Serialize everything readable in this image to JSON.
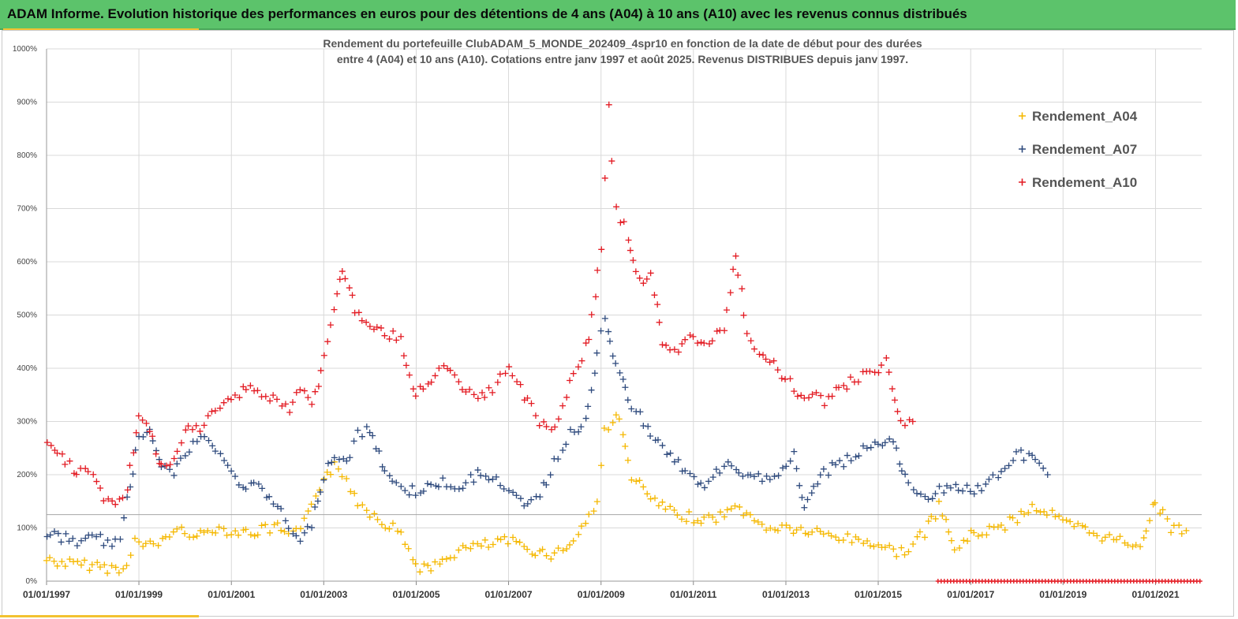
{
  "banner": {
    "text": "ADAM Informe. Evolution historique des performances en euros pour des détentions de 4 ans (A04) à 10 ans (A10) avec les revenus connus distribués"
  },
  "chart_data": {
    "type": "scatter",
    "title_lines": [
      "Rendement du portefeuille ClubADAM_5_MONDE_202409_4spr10  en fonction de la date de début pour des durées",
      "entre 4 (A04) et 10 ans (A10). Cotations entre janv 1997 et août 2025. Revenus DISTRIBUES depuis janv 1997."
    ],
    "x_axis": {
      "type": "date",
      "min": "1997-01-01",
      "max": "2022-01-01",
      "tick_labels": [
        "01/01/1997",
        "01/01/1999",
        "01/01/2001",
        "01/01/2003",
        "01/01/2005",
        "01/01/2007",
        "01/01/2009",
        "01/01/2011",
        "01/01/2013",
        "01/01/2015",
        "01/01/2017",
        "01/01/2019",
        "01/01/2021"
      ]
    },
    "y_axis": {
      "min": 0,
      "max": 1000,
      "unit": "%",
      "tick_labels": [
        "0%",
        "100%",
        "200%",
        "300%",
        "400%",
        "500%",
        "600%",
        "700%",
        "800%",
        "900%",
        "1000%"
      ]
    },
    "grid": true,
    "reference_line_y": 125,
    "legend_position": "top-right",
    "marker": "+",
    "series": [
      {
        "name": "Rendement_A04",
        "color": "#f5b800",
        "x": [
          "1997-01-01",
          "1997-05-01",
          "1997-09-01",
          "1998-01-01",
          "1998-05-01",
          "1998-09-01",
          "1998-12-01",
          "1999-03-01",
          "1999-06-01",
          "1999-09-01",
          "2000-01-01",
          "2000-05-01",
          "2000-09-01",
          "2001-01-01",
          "2001-05-01",
          "2001-09-01",
          "2002-01-01",
          "2002-04-01",
          "2002-07-01",
          "2002-10-01",
          "2003-01-01",
          "2003-04-01",
          "2003-07-01",
          "2003-10-01",
          "2004-01-01",
          "2004-05-01",
          "2004-09-01",
          "2005-01-01",
          "2005-05-01",
          "2005-09-01",
          "2006-01-01",
          "2006-05-01",
          "2006-09-01",
          "2007-01-01",
          "2007-05-01",
          "2007-09-01",
          "2008-01-01",
          "2008-05-01",
          "2008-09-01",
          "2008-12-01",
          "2009-02-01",
          "2009-05-01",
          "2009-09-01",
          "2010-01-01",
          "2010-05-01",
          "2010-09-01",
          "2011-01-01",
          "2011-05-01",
          "2011-09-01",
          "2012-01-01",
          "2012-05-01",
          "2012-09-01",
          "2013-01-01",
          "2013-05-01",
          "2013-09-01",
          "2014-01-01",
          "2014-05-01",
          "2014-09-01",
          "2015-01-01",
          "2015-05-01",
          "2015-09-01",
          "2016-01-01",
          "2016-05-01",
          "2016-09-01",
          "2017-01-01",
          "2017-05-01",
          "2017-09-01",
          "2018-01-01",
          "2018-05-01",
          "2018-09-01",
          "2019-01-01",
          "2019-05-01",
          "2019-09-01",
          "2020-01-01",
          "2020-05-01",
          "2020-09-01",
          "2021-01-01",
          "2021-05-01",
          "2021-09-01"
        ],
        "y": [
          40,
          35,
          30,
          30,
          25,
          20,
          75,
          65,
          70,
          90,
          95,
          85,
          100,
          95,
          90,
          95,
          100,
          85,
          90,
          150,
          195,
          215,
          190,
          150,
          130,
          110,
          90,
          30,
          20,
          45,
          60,
          65,
          70,
          75,
          65,
          55,
          50,
          70,
          110,
          150,
          280,
          320,
          200,
          160,
          140,
          120,
          120,
          115,
          125,
          140,
          110,
          100,
          100,
          95,
          90,
          85,
          80,
          75,
          70,
          55,
          60,
          90,
          140,
          60,
          85,
          95,
          100,
          120,
          140,
          130,
          110,
          100,
          90,
          80,
          75,
          70,
          150,
          100,
          95
        ]
      },
      {
        "name": "Rendement_A07",
        "color": "#2e4a7d",
        "x": [
          "1997-01-01",
          "1997-05-01",
          "1997-09-01",
          "1998-01-01",
          "1998-05-01",
          "1998-08-01",
          "1998-10-01",
          "1999-01-01",
          "1999-04-01",
          "1999-07-01",
          "1999-10-01",
          "2000-01-01",
          "2000-05-01",
          "2000-09-01",
          "2001-01-01",
          "2001-05-01",
          "2001-09-01",
          "2002-01-01",
          "2002-04-01",
          "2002-07-01",
          "2002-10-01",
          "2003-01-01",
          "2003-04-01",
          "2003-07-01",
          "2003-10-01",
          "2004-01-01",
          "2004-05-01",
          "2004-09-01",
          "2005-01-01",
          "2005-05-01",
          "2005-09-01",
          "2006-01-01",
          "2006-05-01",
          "2006-09-01",
          "2007-01-01",
          "2007-05-01",
          "2007-09-01",
          "2008-01-01",
          "2008-05-01",
          "2008-09-01",
          "2008-12-01",
          "2009-02-01",
          "2009-05-01",
          "2009-09-01",
          "2010-01-01",
          "2010-05-01",
          "2010-09-01",
          "2011-01-01",
          "2011-05-01",
          "2011-09-01",
          "2012-01-01",
          "2012-05-01",
          "2012-09-01",
          "2013-01-01",
          "2013-03-01",
          "2013-06-01",
          "2013-10-01",
          "2014-03-01",
          "2014-08-01",
          "2015-01-01",
          "2015-04-01",
          "2015-09-01",
          "2016-01-01",
          "2016-05-01",
          "2016-09-01",
          "2017-01-01",
          "2017-05-01",
          "2017-09-01",
          "2018-01-01",
          "2018-05-01",
          "2018-09-01"
        ],
        "y": [
          90,
          80,
          75,
          80,
          75,
          70,
          150,
          270,
          290,
          220,
          200,
          240,
          270,
          250,
          200,
          180,
          170,
          140,
          100,
          70,
          110,
          200,
          240,
          220,
          280,
          280,
          210,
          170,
          170,
          180,
          185,
          180,
          200,
          200,
          160,
          150,
          160,
          220,
          280,
          300,
          420,
          500,
          400,
          330,
          290,
          250,
          220,
          190,
          180,
          220,
          200,
          190,
          200,
          210,
          240,
          130,
          200,
          220,
          240,
          260,
          270,
          180,
          160,
          170,
          180,
          170,
          180,
          200,
          240,
          230,
          200
        ]
      },
      {
        "name": "Rendement_A10",
        "color": "#e31b23",
        "x": [
          "1997-01-01",
          "1997-04-01",
          "1997-08-01",
          "1997-12-01",
          "1998-04-01",
          "1998-07-01",
          "1998-10-01",
          "1999-01-01",
          "1999-04-01",
          "1999-07-01",
          "1999-10-01",
          "2000-01-01",
          "2000-05-01",
          "2000-09-01",
          "2001-01-01",
          "2001-05-01",
          "2001-09-01",
          "2002-01-01",
          "2002-04-01",
          "2002-07-01",
          "2002-10-01",
          "2003-01-01",
          "2003-03-01",
          "2003-06-01",
          "2003-09-01",
          "2004-01-01",
          "2004-05-01",
          "2004-09-01",
          "2005-01-01",
          "2005-05-01",
          "2005-09-01",
          "2006-01-01",
          "2006-05-01",
          "2006-09-01",
          "2007-01-01",
          "2007-05-01",
          "2007-09-01",
          "2008-01-01",
          "2008-04-01",
          "2008-07-01",
          "2008-10-01",
          "2009-01-01",
          "2009-03-01",
          "2009-05-01",
          "2009-08-01",
          "2009-11-01",
          "2010-02-01",
          "2010-05-01",
          "2010-09-01",
          "2011-01-01",
          "2011-05-01",
          "2011-09-01",
          "2011-12-01",
          "2012-03-01",
          "2012-07-01",
          "2012-11-01",
          "2013-03-01",
          "2013-07-01",
          "2013-11-01",
          "2014-03-01",
          "2014-07-01",
          "2014-11-01",
          "2015-03-01",
          "2015-07-01",
          "2015-10-01"
        ],
        "y": [
          270,
          240,
          210,
          200,
          160,
          140,
          170,
          320,
          280,
          210,
          220,
          280,
          290,
          320,
          340,
          370,
          350,
          340,
          320,
          360,
          330,
          420,
          480,
          590,
          510,
          470,
          470,
          450,
          350,
          380,
          400,
          360,
          340,
          360,
          400,
          350,
          300,
          290,
          350,
          400,
          460,
          620,
          890,
          700,
          650,
          560,
          570,
          450,
          430,
          460,
          440,
          480,
          620,
          470,
          420,
          400,
          360,
          350,
          340,
          360,
          380,
          390,
          410,
          300,
          300
        ]
      }
    ]
  }
}
